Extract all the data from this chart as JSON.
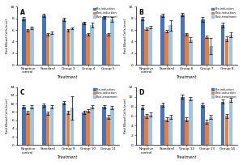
{
  "panels": [
    {
      "label": "A",
      "groups": [
        "Negative\ncontrol",
        "Standard",
        "Group 3",
        "Group 4",
        "Group 5"
      ],
      "pre": [
        8.0,
        8.5,
        7.8,
        7.2,
        8.2
      ],
      "post_ind": [
        6.0,
        5.3,
        6.0,
        5.3,
        5.3
      ],
      "post_treat": [
        6.4,
        5.5,
        6.3,
        6.8,
        7.8
      ],
      "pre_err": [
        0.25,
        0.25,
        0.25,
        0.25,
        0.25
      ],
      "post_ind_err": [
        0.2,
        0.2,
        0.2,
        0.2,
        0.2
      ],
      "post_treat_err": [
        0.2,
        0.2,
        0.2,
        0.4,
        0.45
      ],
      "ylim": [
        0,
        10
      ],
      "yticks": [
        0,
        2,
        4,
        6,
        8,
        10
      ]
    },
    {
      "label": "B",
      "groups": [
        "Negative\ncontrol",
        "Standard",
        "Group 6",
        "Group 7",
        "Group 8"
      ],
      "pre": [
        8.0,
        8.5,
        8.7,
        7.8,
        6.8
      ],
      "post_ind": [
        6.2,
        5.8,
        5.3,
        4.8,
        4.5
      ],
      "post_treat": [
        6.5,
        6.8,
        4.3,
        3.2,
        5.2
      ],
      "pre_err": [
        0.25,
        0.25,
        0.25,
        0.4,
        0.4
      ],
      "post_ind_err": [
        0.2,
        0.2,
        0.2,
        0.25,
        0.4
      ],
      "post_treat_err": [
        0.25,
        0.9,
        0.45,
        1.4,
        0.45
      ],
      "ylim": [
        0,
        10
      ],
      "yticks": [
        0,
        2,
        4,
        6,
        8,
        10
      ]
    },
    {
      "label": "C",
      "groups": [
        "Negative\ncontrol",
        "Standard",
        "Group 9",
        "Group 10",
        "Group 11"
      ],
      "pre": [
        9.3,
        9.6,
        10.3,
        7.8,
        9.2
      ],
      "post_ind": [
        7.8,
        7.6,
        7.8,
        8.2,
        6.8
      ],
      "post_treat": [
        9.2,
        9.2,
        9.0,
        9.2,
        9.0
      ],
      "pre_err": [
        0.4,
        0.4,
        0.4,
        0.4,
        0.4
      ],
      "post_ind_err": [
        0.4,
        0.4,
        0.4,
        0.4,
        0.4
      ],
      "post_treat_err": [
        0.4,
        0.4,
        2.8,
        0.4,
        0.4
      ],
      "ylim": [
        0,
        14
      ],
      "yticks": [
        0,
        2,
        4,
        6,
        8,
        10,
        12,
        14
      ]
    },
    {
      "label": "D",
      "groups": [
        "Negative\ncontrol",
        "Standard",
        "Group 12",
        "Group 13",
        "Group 14"
      ],
      "pre": [
        7.8,
        8.3,
        10.0,
        8.3,
        9.0
      ],
      "post_ind": [
        6.0,
        5.3,
        5.3,
        4.8,
        6.0
      ],
      "post_treat": [
        6.3,
        5.8,
        9.6,
        5.8,
        9.3
      ],
      "pre_err": [
        0.4,
        0.4,
        0.4,
        0.4,
        0.4
      ],
      "post_ind_err": [
        0.4,
        0.4,
        0.4,
        0.4,
        0.4
      ],
      "post_treat_err": [
        0.4,
        0.4,
        0.4,
        0.4,
        0.4
      ],
      "ylim": [
        0,
        12
      ],
      "yticks": [
        0,
        2,
        4,
        6,
        8,
        10,
        12
      ]
    }
  ],
  "colors": {
    "pre": "#4472c4",
    "post_ind": "#ed7d31",
    "post_treat": "#9dc3e6"
  },
  "legend_labels": [
    "Pre-induction",
    "Post-induction",
    "Post-treatment"
  ],
  "ylabel": "Red Blood Cells level",
  "xlabel": "Treatment",
  "background": "#ffffff",
  "panel_bg": "#ffffff"
}
